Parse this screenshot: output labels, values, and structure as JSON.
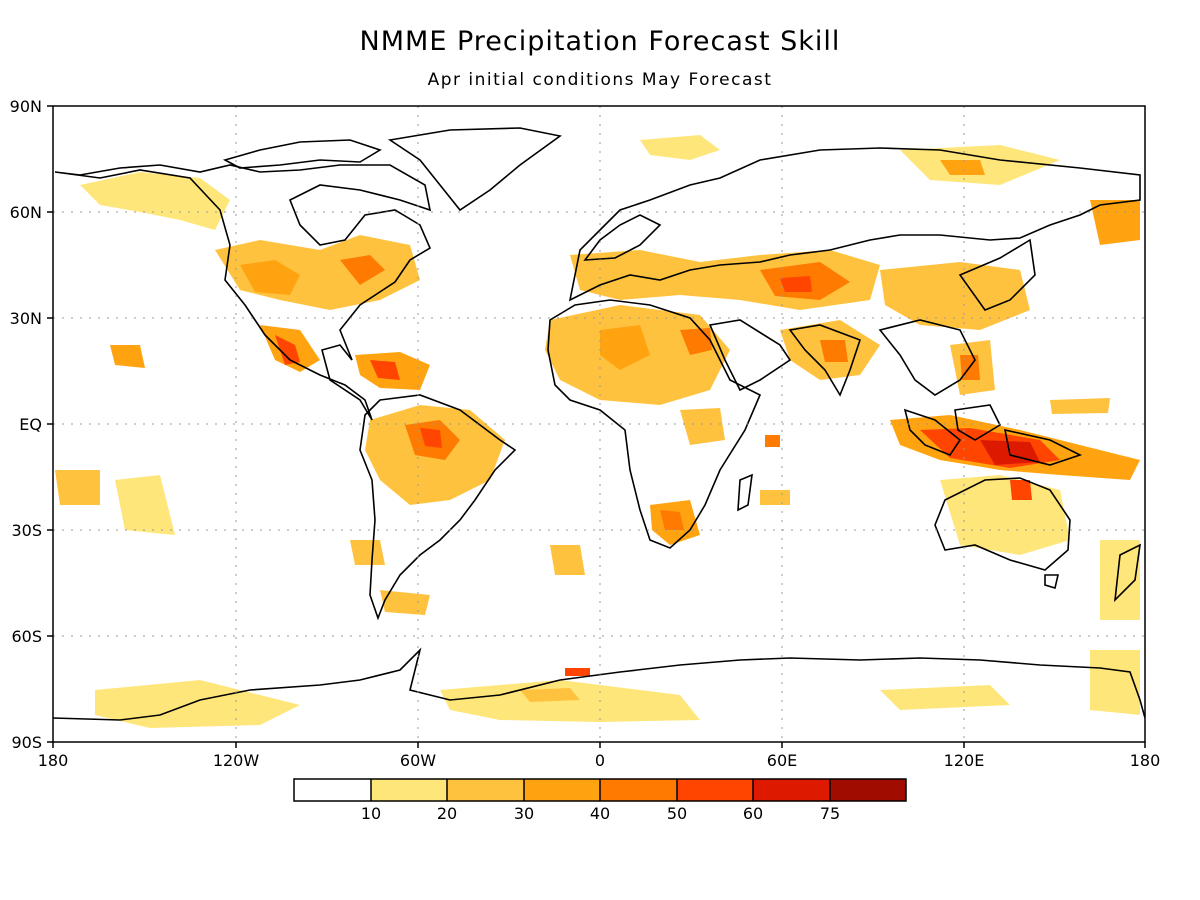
{
  "title": "NMME Precipitation Forecast Skill",
  "subtitle": "Apr initial conditions  May Forecast",
  "lat_labels": [
    "90N",
    "60N",
    "30N",
    "EQ",
    "30S",
    "60S",
    "90S"
  ],
  "lon_labels": [
    "180",
    "120W",
    "60W",
    "0",
    "60E",
    "120E",
    "180"
  ],
  "colorbar": {
    "labels": [
      "10",
      "20",
      "30",
      "40",
      "50",
      "60",
      "75"
    ],
    "colors": [
      "#ffffff",
      "#ffe67a",
      "#ffc23e",
      "#ffa310",
      "#ff7a00",
      "#ff4500",
      "#dd1a00",
      "#a00c00"
    ]
  }
}
